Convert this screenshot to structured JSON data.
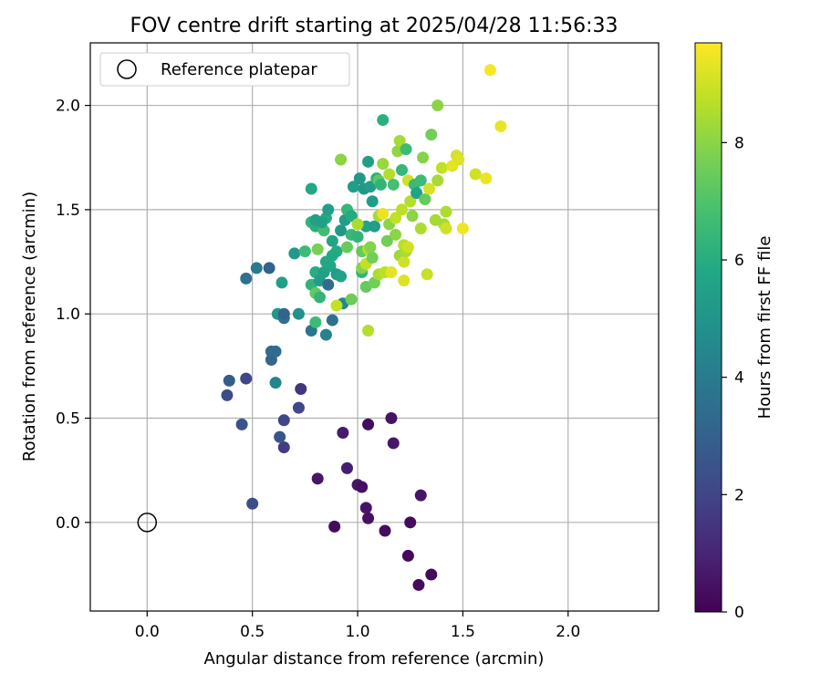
{
  "chart_data": {
    "type": "scatter",
    "title": "FOV centre drift starting at 2025/04/28 11:56:33",
    "xlabel": "Angular distance from reference (arcmin)",
    "ylabel": "Rotation from reference (arcmin)",
    "xlim": [
      -0.27,
      2.43
    ],
    "ylim": [
      -0.425,
      2.3
    ],
    "xticks": [
      0.0,
      0.5,
      1.0,
      1.5,
      2.0
    ],
    "xtick_labels": [
      "0.0",
      "0.5",
      "1.0",
      "1.5",
      "2.0"
    ],
    "yticks": [
      0.0,
      0.5,
      1.0,
      1.5,
      2.0
    ],
    "ytick_labels": [
      "0.0",
      "0.5",
      "1.0",
      "1.5",
      "2.0"
    ],
    "grid": true,
    "legend": {
      "placement": "top-left",
      "entries": [
        "Reference platepar"
      ]
    },
    "reference_point": {
      "x": 0.0,
      "y": 0.0,
      "marker": "open-circle"
    },
    "colorbar": {
      "label": "Hours from first FF file",
      "range": [
        0,
        9.7
      ],
      "ticks": [
        0,
        2,
        4,
        6,
        8
      ],
      "tick_labels": [
        "0",
        "2",
        "4",
        "6",
        "8"
      ],
      "colormap": "viridis"
    },
    "points": [
      [
        0.89,
        -0.02,
        0.3
      ],
      [
        1.05,
        0.02,
        0.4
      ],
      [
        1.13,
        -0.04,
        0.3
      ],
      [
        1.25,
        0.0,
        0.3
      ],
      [
        1.24,
        -0.16,
        0.2
      ],
      [
        1.29,
        -0.3,
        0.3
      ],
      [
        1.35,
        -0.25,
        0.2
      ],
      [
        1.3,
        0.13,
        0.6
      ],
      [
        1.04,
        0.07,
        0.5
      ],
      [
        1.0,
        0.18,
        0.6
      ],
      [
        1.02,
        0.17,
        0.4
      ],
      [
        0.95,
        0.26,
        0.8
      ],
      [
        0.81,
        0.21,
        0.6
      ],
      [
        0.93,
        0.43,
        0.7
      ],
      [
        1.05,
        0.47,
        0.3
      ],
      [
        1.16,
        0.5,
        0.5
      ],
      [
        1.17,
        0.38,
        0.6
      ],
      [
        0.5,
        0.09,
        2.3
      ],
      [
        0.65,
        0.36,
        1.7
      ],
      [
        0.63,
        0.41,
        2.6
      ],
      [
        0.65,
        0.49,
        2.0
      ],
      [
        0.72,
        0.55,
        2.1
      ],
      [
        0.73,
        0.64,
        1.5
      ],
      [
        0.45,
        0.47,
        2.5
      ],
      [
        0.38,
        0.61,
        2.2
      ],
      [
        0.47,
        0.69,
        2.0
      ],
      [
        0.39,
        0.68,
        2.8
      ],
      [
        0.59,
        0.78,
        3.2
      ],
      [
        0.59,
        0.82,
        3.3
      ],
      [
        0.61,
        0.82,
        3.4
      ],
      [
        0.61,
        0.67,
        4.4
      ],
      [
        0.62,
        1.0,
        5.1
      ],
      [
        0.65,
        0.98,
        3.6
      ],
      [
        0.65,
        1.0,
        3.0
      ],
      [
        0.72,
        1.0,
        4.9
      ],
      [
        0.78,
        0.92,
        3.8
      ],
      [
        0.85,
        0.9,
        4.3
      ],
      [
        0.88,
        0.97,
        3.6
      ],
      [
        0.8,
        0.96,
        6.6
      ],
      [
        0.47,
        1.17,
        3.6
      ],
      [
        0.52,
        1.22,
        4.0
      ],
      [
        0.58,
        1.22,
        3.0
      ],
      [
        0.64,
        1.15,
        5.5
      ],
      [
        0.7,
        1.29,
        5.2
      ],
      [
        0.75,
        1.3,
        6.6
      ],
      [
        0.78,
        1.14,
        6.3
      ],
      [
        0.8,
        1.2,
        6.0
      ],
      [
        0.82,
        1.16,
        5.3
      ],
      [
        0.86,
        1.14,
        3.4
      ],
      [
        0.84,
        1.2,
        5.5
      ],
      [
        0.85,
        1.25,
        5.8
      ],
      [
        0.87,
        1.23,
        5.7
      ],
      [
        0.9,
        1.19,
        5.3
      ],
      [
        0.92,
        1.18,
        5.6
      ],
      [
        0.93,
        1.05,
        4.5
      ],
      [
        0.78,
        1.44,
        6.3
      ],
      [
        0.8,
        1.42,
        6.1
      ],
      [
        0.84,
        1.4,
        6.7
      ],
      [
        0.85,
        1.46,
        5.9
      ],
      [
        0.86,
        1.5,
        5.5
      ],
      [
        0.88,
        1.35,
        5.6
      ],
      [
        0.9,
        1.3,
        5.9
      ],
      [
        0.92,
        1.4,
        5.2
      ],
      [
        0.94,
        1.45,
        5.4
      ],
      [
        0.95,
        1.5,
        6.4
      ],
      [
        0.97,
        1.38,
        6.5
      ],
      [
        0.97,
        1.47,
        5.9
      ],
      [
        0.98,
        1.61,
        5.4
      ],
      [
        1.0,
        1.37,
        6.3
      ],
      [
        1.01,
        1.65,
        5.2
      ],
      [
        1.02,
        1.3,
        7.4
      ],
      [
        1.02,
        1.2,
        6.3
      ],
      [
        1.03,
        1.6,
        5.1
      ],
      [
        1.04,
        1.42,
        5.6
      ],
      [
        1.05,
        1.73,
        5.4
      ],
      [
        1.06,
        1.61,
        5.4
      ],
      [
        1.07,
        1.54,
        5.3
      ],
      [
        1.08,
        1.42,
        5.4
      ],
      [
        1.09,
        1.65,
        6.1
      ],
      [
        1.1,
        1.64,
        7.3
      ],
      [
        1.11,
        1.62,
        6.3
      ],
      [
        1.12,
        1.93,
        6.1
      ],
      [
        0.78,
        1.6,
        5.8
      ],
      [
        0.8,
        1.45,
        5.5
      ],
      [
        0.83,
        1.44,
        5.5
      ],
      [
        0.88,
        1.28,
        5.8
      ],
      [
        0.95,
        1.32,
        7.4
      ],
      [
        0.81,
        1.31,
        7.7
      ],
      [
        0.8,
        1.1,
        7.3
      ],
      [
        0.82,
        1.08,
        6.3
      ],
      [
        0.9,
        1.04,
        8.8
      ],
      [
        0.92,
        1.74,
        8.0
      ],
      [
        0.97,
        1.07,
        7.5
      ],
      [
        1.0,
        1.43,
        8.5
      ],
      [
        1.02,
        1.22,
        7.9
      ],
      [
        1.04,
        1.13,
        7.4
      ],
      [
        1.04,
        1.24,
        8.8
      ],
      [
        1.05,
        1.31,
        8.6
      ],
      [
        1.06,
        1.32,
        7.9
      ],
      [
        1.07,
        1.27,
        7.6
      ],
      [
        1.08,
        1.15,
        7.6
      ],
      [
        1.1,
        1.19,
        8.5
      ],
      [
        1.1,
        1.47,
        8.4
      ],
      [
        1.12,
        1.72,
        8.2
      ],
      [
        1.12,
        1.48,
        9.4
      ],
      [
        1.13,
        1.2,
        8.7
      ],
      [
        1.14,
        1.35,
        7.6
      ],
      [
        1.15,
        1.43,
        8.0
      ],
      [
        1.15,
        1.67,
        8.6
      ],
      [
        1.16,
        1.2,
        9.3
      ],
      [
        1.17,
        1.62,
        6.8
      ],
      [
        1.18,
        1.46,
        8.8
      ],
      [
        1.18,
        1.38,
        8.0
      ],
      [
        1.19,
        1.78,
        8.1
      ],
      [
        1.2,
        1.28,
        8.3
      ],
      [
        1.2,
        1.83,
        8.4
      ],
      [
        1.21,
        1.69,
        6.4
      ],
      [
        1.21,
        1.5,
        8.7
      ],
      [
        1.22,
        1.33,
        8.7
      ],
      [
        1.22,
        1.16,
        9.2
      ],
      [
        1.22,
        1.25,
        9.0
      ],
      [
        1.23,
        1.3,
        8.5
      ],
      [
        1.23,
        1.79,
        6.6
      ],
      [
        1.24,
        1.64,
        9.0
      ],
      [
        1.24,
        1.32,
        9.0
      ],
      [
        1.25,
        1.54,
        8.6
      ],
      [
        1.26,
        1.47,
        8.0
      ],
      [
        1.27,
        1.62,
        6.5
      ],
      [
        1.28,
        1.58,
        5.6
      ],
      [
        1.3,
        1.64,
        6.6
      ],
      [
        1.3,
        1.41,
        8.5
      ],
      [
        1.31,
        1.75,
        7.9
      ],
      [
        1.32,
        1.55,
        7.4
      ],
      [
        1.33,
        1.19,
        8.9
      ],
      [
        1.34,
        1.6,
        9.1
      ],
      [
        1.35,
        1.86,
        7.6
      ],
      [
        1.37,
        1.45,
        8.4
      ],
      [
        1.38,
        1.64,
        8.4
      ],
      [
        1.38,
        2.0,
        8.0
      ],
      [
        1.4,
        1.7,
        8.8
      ],
      [
        1.41,
        1.43,
        8.4
      ],
      [
        1.42,
        1.41,
        9.0
      ],
      [
        1.42,
        1.49,
        8.5
      ],
      [
        1.45,
        1.71,
        9.3
      ],
      [
        1.47,
        1.76,
        9.1
      ],
      [
        1.48,
        1.74,
        9.2
      ],
      [
        1.5,
        1.41,
        9.5
      ],
      [
        1.56,
        1.67,
        9.0
      ],
      [
        1.61,
        1.65,
        9.4
      ],
      [
        1.63,
        2.17,
        9.6
      ],
      [
        1.68,
        1.9,
        9.4
      ],
      [
        1.05,
        0.92,
        8.6
      ]
    ]
  }
}
